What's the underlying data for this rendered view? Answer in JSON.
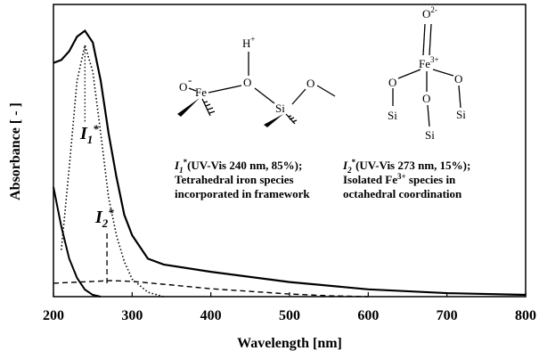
{
  "chart_data": {
    "type": "line",
    "xlabel": "Wavelength [nm]",
    "ylabel": "Absorbance [ - ]",
    "xlim": [
      200,
      800
    ],
    "xticks": [
      200,
      300,
      400,
      500,
      600,
      700,
      800
    ],
    "ylim": [
      0,
      1
    ],
    "series": [
      {
        "color": "#000000",
        "dash": "solid",
        "width": 2.2,
        "x": [
          200,
          210,
          220,
          230,
          240,
          250,
          260,
          270,
          280,
          290,
          300,
          320,
          340,
          400,
          500,
          600,
          700,
          800
        ],
        "values": [
          0.8,
          0.81,
          0.84,
          0.89,
          0.91,
          0.87,
          0.74,
          0.56,
          0.41,
          0.28,
          0.21,
          0.13,
          0.11,
          0.085,
          0.05,
          0.025,
          0.012,
          0.006
        ]
      },
      {
        "color": "#000000",
        "dash": "dotted",
        "width": 1.6,
        "x": [
          210,
          220,
          230,
          240,
          250,
          260,
          270,
          280,
          290,
          300,
          320,
          340
        ],
        "values": [
          0.16,
          0.44,
          0.74,
          0.86,
          0.77,
          0.56,
          0.34,
          0.21,
          0.12,
          0.06,
          0.015,
          0
        ]
      },
      {
        "color": "#000000",
        "dash": "solid",
        "width": 2,
        "x": [
          200,
          210,
          220,
          230,
          240,
          250,
          260
        ],
        "values": [
          0.375,
          0.24,
          0.13,
          0.064,
          0.024,
          0.006,
          0
        ]
      },
      {
        "color": "#000000",
        "dash": "dashed",
        "width": 1.4,
        "x": [
          200,
          250,
          273,
          300,
          350,
          400,
          450,
          500,
          550,
          600
        ],
        "values": [
          0.046,
          0.052,
          0.055,
          0.052,
          0.04,
          0.027,
          0.018,
          0.009,
          0.003,
          0
        ]
      }
    ],
    "peak_labels": [
      {
        "main": "I",
        "sub": "1",
        "sup": "*",
        "marker_x": 240,
        "marker_dash": "dotted"
      },
      {
        "main": "I",
        "sub": "2",
        "sup": "*",
        "marker_x": 268,
        "marker_dash": "dashed"
      }
    ],
    "descriptions": [
      {
        "first": {
          "main": "I",
          "sub": "1",
          "sup": "*",
          "rest": "(UV-Vis 240 nm, 85%);"
        },
        "lines": [
          {
            "pre": "Tetrahedral iron species"
          },
          {
            "pre": "incorporated in framework"
          }
        ]
      },
      {
        "first": {
          "main": "I",
          "sub": "2",
          "sup": "*",
          "rest": "(UV-Vis 273 nm, 15%);"
        },
        "lines": [
          {
            "pre": "Isolated Fe",
            "sup": "3+",
            "rest": " species in"
          },
          {
            "pre": "octahedral coordination"
          }
        ]
      }
    ],
    "structures": [
      {
        "atoms": [
          {
            "t": "H",
            "sup": "+"
          },
          {
            "t": "O"
          },
          {
            "t": "Fe"
          },
          {
            "t": "-"
          },
          {
            "t": "O"
          },
          {
            "t": "Si"
          },
          {
            "t": "O"
          }
        ]
      },
      {
        "atoms": [
          {
            "t": "O",
            "sup": "2-"
          },
          {
            "t": "Fe",
            "sup": "3+"
          },
          {
            "t": "O"
          },
          {
            "t": "O"
          },
          {
            "t": "O"
          },
          {
            "t": "Si"
          },
          {
            "t": "Si"
          },
          {
            "t": "Si"
          }
        ]
      }
    ]
  }
}
